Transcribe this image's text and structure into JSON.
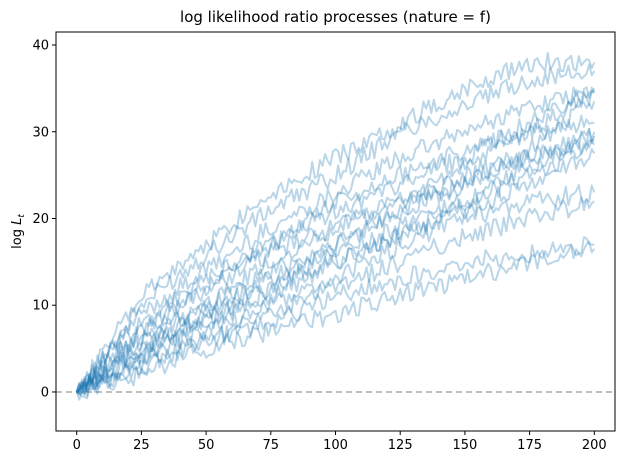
{
  "chart_data": {
    "type": "line",
    "title": "log likelihood ratio processes (nature = f)",
    "xlabel": "",
    "ylabel": "log L_t",
    "xlim": [
      -8,
      208
    ],
    "ylim": [
      -4.5,
      41.5
    ],
    "xticks": [
      0,
      25,
      50,
      75,
      100,
      125,
      150,
      175,
      200
    ],
    "yticks": [
      0,
      10,
      20,
      30,
      40
    ],
    "grid": false,
    "legend": "none",
    "line_color": "#1f77b4",
    "line_alpha": 0.3,
    "reference_line": {
      "y": 0,
      "color": "#aaaaaa",
      "style": "dashed"
    },
    "series": [
      {
        "x": [
          0,
          25,
          50,
          75,
          100,
          125,
          150,
          175,
          200
        ],
        "values": [
          0,
          11,
          17,
          23,
          27,
          31,
          35,
          38,
          38
        ]
      },
      {
        "x": [
          0,
          25,
          50,
          75,
          100,
          125,
          150,
          175,
          200
        ],
        "values": [
          0,
          10,
          16,
          21,
          25,
          30,
          33,
          36,
          37
        ]
      },
      {
        "x": [
          0,
          25,
          50,
          75,
          100,
          125,
          150,
          175,
          200
        ],
        "values": [
          0,
          9,
          14,
          19,
          23,
          27,
          30,
          33,
          34.5
        ]
      },
      {
        "x": [
          0,
          25,
          50,
          75,
          100,
          125,
          150,
          175,
          200
        ],
        "values": [
          0,
          7,
          12,
          16,
          19,
          22,
          26,
          30,
          34.5
        ]
      },
      {
        "x": [
          0,
          25,
          50,
          75,
          100,
          125,
          150,
          175,
          200
        ],
        "values": [
          0,
          6,
          10,
          14,
          17,
          21,
          24,
          28,
          33.5
        ]
      },
      {
        "x": [
          0,
          25,
          50,
          75,
          100,
          125,
          150,
          175,
          200
        ],
        "values": [
          0,
          5,
          9,
          13,
          17,
          21,
          24,
          27,
          30
        ]
      },
      {
        "x": [
          0,
          25,
          50,
          75,
          100,
          125,
          150,
          175,
          200
        ],
        "values": [
          0,
          6,
          10,
          15,
          19,
          22,
          25,
          27,
          29.5
        ]
      },
      {
        "x": [
          0,
          25,
          50,
          75,
          100,
          125,
          150,
          175,
          200
        ],
        "values": [
          0,
          5,
          8,
          12,
          16,
          19,
          22,
          26,
          29
        ]
      },
      {
        "x": [
          0,
          25,
          50,
          75,
          100,
          125,
          150,
          175,
          200
        ],
        "values": [
          0,
          4,
          8,
          11,
          15,
          18,
          22,
          25,
          28.5
        ]
      },
      {
        "x": [
          0,
          25,
          50,
          75,
          100,
          125,
          150,
          175,
          200
        ],
        "values": [
          0,
          5,
          9,
          12,
          15,
          18,
          21,
          24,
          27.5
        ]
      },
      {
        "x": [
          0,
          25,
          50,
          75,
          100,
          125,
          150,
          175,
          200
        ],
        "values": [
          0,
          4,
          7,
          10,
          13,
          17,
          20,
          22,
          23
        ]
      },
      {
        "x": [
          0,
          25,
          50,
          75,
          100,
          125,
          150,
          175,
          200
        ],
        "values": [
          0,
          3,
          6,
          9,
          12,
          15,
          18,
          20,
          22
        ]
      },
      {
        "x": [
          0,
          25,
          50,
          75,
          100,
          125,
          150,
          175,
          200
        ],
        "values": [
          0,
          3,
          6,
          8,
          11,
          13,
          15,
          16,
          17
        ]
      },
      {
        "x": [
          0,
          25,
          50,
          75,
          100,
          125,
          150,
          175,
          200
        ],
        "values": [
          0,
          2,
          5,
          7,
          9,
          11,
          13,
          15,
          16.5
        ]
      },
      {
        "x": [
          0,
          25,
          50,
          75,
          100,
          125,
          150,
          175,
          200
        ],
        "values": [
          0,
          7,
          12,
          17,
          22,
          25,
          28,
          30,
          31
        ]
      },
      {
        "x": [
          0,
          25,
          50,
          75,
          100,
          125,
          150,
          175,
          200
        ],
        "values": [
          0,
          8,
          13,
          17,
          21,
          24,
          27,
          31,
          35
        ]
      }
    ]
  }
}
